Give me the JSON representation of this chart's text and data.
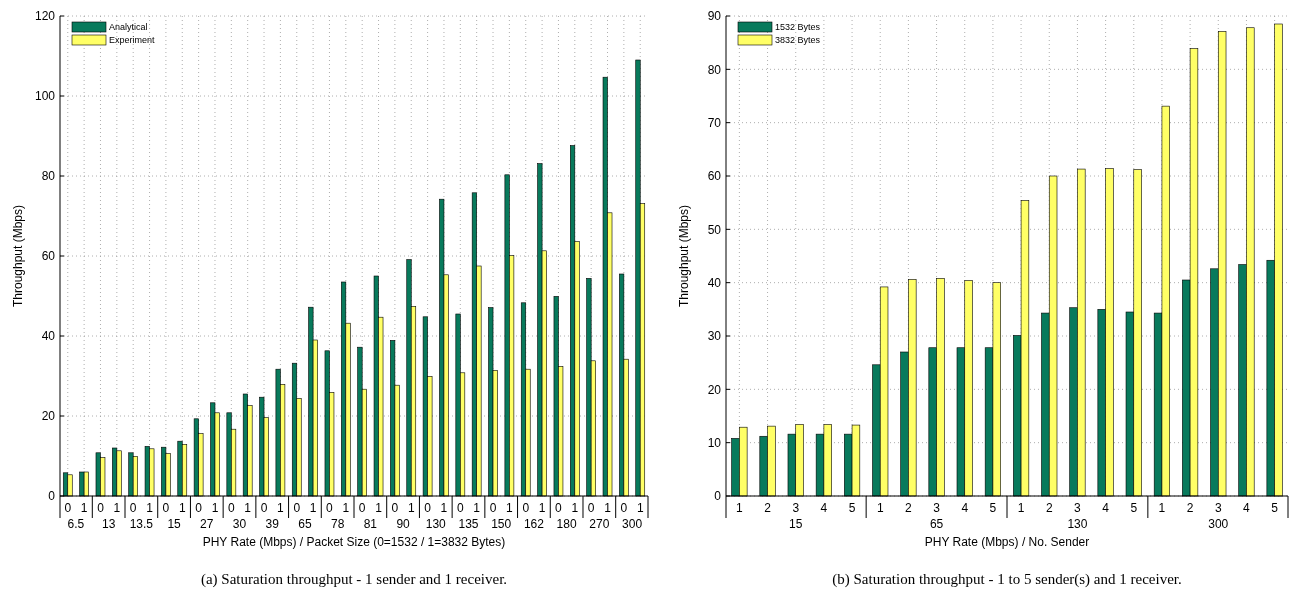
{
  "chart_data": [
    {
      "type": "bar",
      "title": "(a)  Saturation throughput - 1 sender and 1 receiver.",
      "xlabel": "PHY Rate (Mbps) / Packet Size (0=1532 / 1=3832 Bytes)",
      "ylabel": "Throughput (Mbps)",
      "categories": [
        "0",
        "1",
        "0",
        "1",
        "0",
        "1",
        "0",
        "1",
        "0",
        "1",
        "0",
        "1",
        "0",
        "1",
        "0",
        "1",
        "0",
        "1",
        "0",
        "1",
        "0",
        "1",
        "0",
        "1",
        "0",
        "1",
        "0",
        "1",
        "0",
        "1",
        "0",
        "1",
        "0",
        "1",
        "0",
        "1"
      ],
      "annotations": [
        "6.5",
        "13",
        "13.5",
        "15",
        "27",
        "30",
        "39",
        "65",
        "78",
        "81",
        "90",
        "130",
        "135",
        "150",
        "162",
        "180",
        "270",
        "300"
      ],
      "series": [
        {
          "name": "Analytical",
          "color": "#087a5c",
          "values": [
            5.8,
            6.0,
            10.8,
            12.0,
            10.8,
            12.4,
            12.2,
            13.7,
            19.3,
            23.3,
            20.8,
            25.5,
            24.7,
            31.7,
            33.2,
            47.2,
            36.3,
            53.5,
            37.2,
            55.0,
            38.9,
            59.1,
            44.8,
            74.2,
            45.5,
            75.8,
            47.1,
            80.3,
            48.3,
            83.1,
            49.9,
            87.6,
            54.4,
            104.7,
            55.5,
            109.0
          ]
        },
        {
          "name": "Experiment",
          "color": "#ffff66",
          "values": [
            5.3,
            6.0,
            9.6,
            11.3,
            9.9,
            11.8,
            10.6,
            12.9,
            15.6,
            20.8,
            16.7,
            22.6,
            19.6,
            27.9,
            24.4,
            39.0,
            25.9,
            43.2,
            26.7,
            44.7,
            27.7,
            47.4,
            29.9,
            55.3,
            30.8,
            57.5,
            31.4,
            60.1,
            31.7,
            61.3,
            32.4,
            63.6,
            33.8,
            70.8,
            34.2,
            73.1
          ]
        }
      ],
      "ylim": [
        0,
        120
      ],
      "yticks": [
        0,
        20,
        40,
        60,
        80,
        100,
        120
      ],
      "grid": true,
      "legend": "top left"
    },
    {
      "type": "bar",
      "title": "(b)  Saturation throughput - 1 to 5 sender(s) and 1 receiver.",
      "xlabel": "PHY Rate (Mbps) / No. Sender",
      "ylabel": "Throughput (Mbps)",
      "categories": [
        "1",
        "2",
        "3",
        "4",
        "5",
        "1",
        "2",
        "3",
        "4",
        "5",
        "1",
        "2",
        "3",
        "4",
        "5",
        "1",
        "2",
        "3",
        "4",
        "5"
      ],
      "annotations": [
        "15",
        "65",
        "130",
        "300"
      ],
      "series": [
        {
          "name": "1532 Bytes",
          "color": "#087a5c",
          "values": [
            10.8,
            11.2,
            11.6,
            11.6,
            11.6,
            24.6,
            27.0,
            27.8,
            27.8,
            27.8,
            30.1,
            34.3,
            35.3,
            35.0,
            34.5,
            34.3,
            40.5,
            42.6,
            43.4,
            44.2
          ]
        },
        {
          "name": "3832 Bytes",
          "color": "#ffff66",
          "values": [
            12.9,
            13.1,
            13.4,
            13.4,
            13.3,
            39.2,
            40.6,
            40.8,
            40.4,
            40.0,
            55.4,
            60.0,
            61.3,
            61.4,
            61.2,
            73.1,
            83.9,
            87.1,
            87.8,
            88.5
          ]
        }
      ],
      "ylim": [
        0,
        90
      ],
      "yticks": [
        0,
        10,
        20,
        30,
        40,
        50,
        60,
        70,
        80,
        90
      ],
      "grid": true,
      "legend": "top left"
    }
  ]
}
